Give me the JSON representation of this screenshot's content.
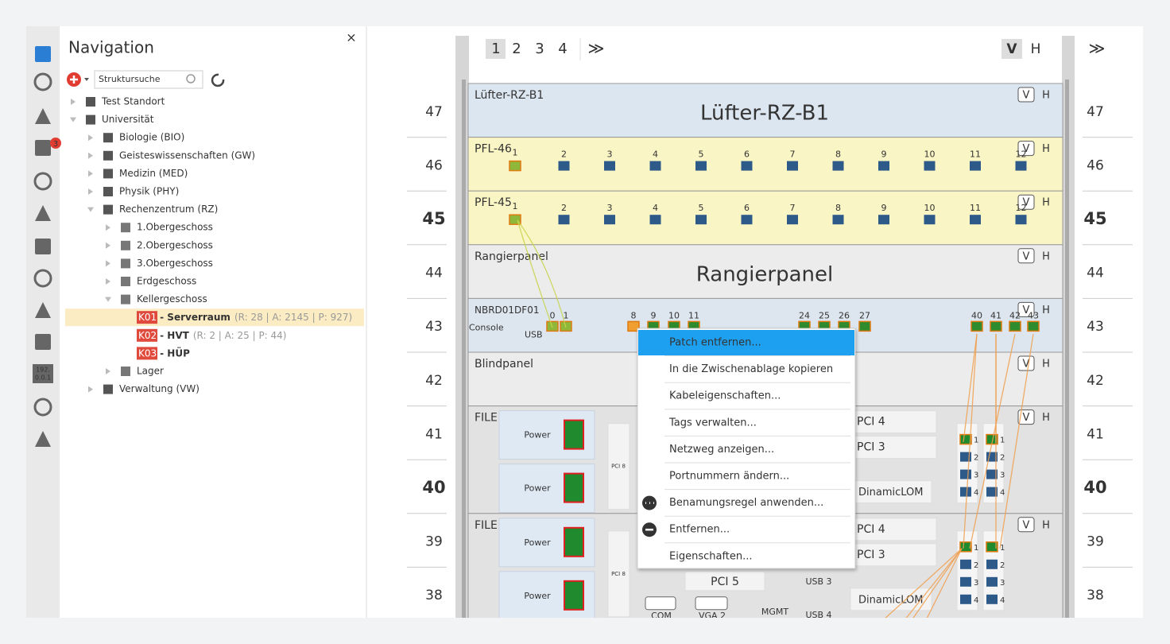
{
  "navigation": {
    "title": "Navigation",
    "close": "×",
    "search_placeholder": "Struktursuche",
    "badge": "3",
    "ip_icon": [
      "192.",
      "0.0.1"
    ],
    "tree": [
      {
        "label": "Test Standort"
      },
      {
        "label": "Universität",
        "children": [
          {
            "label": "Biologie (BIO)"
          },
          {
            "label": "Geisteswissenschaften (GW)"
          },
          {
            "label": "Medizin (MED)"
          },
          {
            "label": "Physik (PHY)"
          },
          {
            "label": "Rechenzentrum (RZ)",
            "children": [
              {
                "label": "1.Obergeschoss"
              },
              {
                "label": "2.Obergeschoss"
              },
              {
                "label": "3.Obergeschoss"
              },
              {
                "label": "Erdgeschoss"
              },
              {
                "label": "Kellergeschoss",
                "children": [
                  {
                    "code": "K01",
                    "label": "- Serverraum",
                    "details": "(R: 28 | A: 2145 | P: 927)",
                    "selected": true
                  },
                  {
                    "code": "K02",
                    "label": "- HVT",
                    "details": "(R: 2 | A: 25 | P: 44)"
                  },
                  {
                    "code": "K03",
                    "label": "- HÜP"
                  }
                ]
              },
              {
                "label": "Lager"
              }
            ]
          },
          {
            "label": "Verwaltung (VW)"
          }
        ]
      }
    ]
  },
  "rack": {
    "pages": [
      "1",
      "2",
      "3",
      "4"
    ],
    "next": "≫",
    "view": [
      "V",
      "H"
    ],
    "side_next": "≫",
    "units": [
      47,
      46,
      45,
      44,
      43,
      42,
      41,
      40,
      39,
      38
    ],
    "devices": [
      {
        "label": "Lüfter-RZ-B1",
        "name": "Lüfter-RZ-B1"
      },
      {
        "label": "PFL-46",
        "ports": [
          1,
          2,
          3,
          4,
          5,
          6,
          7,
          8,
          9,
          10,
          11,
          12
        ]
      },
      {
        "label": "PFL-45",
        "ports": [
          1,
          2,
          3,
          4,
          5,
          6,
          7,
          8,
          9,
          10,
          11,
          12
        ]
      },
      {
        "label": "Rangierpanel",
        "name": "Rangierpanel"
      },
      {
        "label": "NBRD01DF01",
        "console": "Console",
        "usb": "USB",
        "ports": [
          0,
          1,
          8,
          9,
          10,
          11,
          24,
          25,
          26,
          27,
          40,
          41,
          42,
          43
        ]
      },
      {
        "label": "Blindpanel"
      },
      {
        "label": "FILE",
        "power": [
          "Power",
          "Power"
        ],
        "pci": [
          "PCI 8",
          "PCI 4",
          "PCI 3"
        ],
        "lom": "DinamicLOM",
        "lom_ports": [
          1,
          2,
          3,
          4
        ]
      },
      {
        "label": "FILE",
        "power": [
          "Power",
          "Power"
        ],
        "pci": [
          "PCI 8",
          "PCI 4",
          "PCI 3",
          "PCI 5"
        ],
        "lom": "DinamicLOM",
        "lom_ports": [
          1,
          2,
          3,
          4
        ],
        "io": [
          "USB 3",
          "USB 4",
          "COM",
          "VGA 2",
          "MGMT"
        ]
      }
    ]
  },
  "context_menu": [
    "Patch entfernen...",
    "In die Zwischenablage kopieren",
    "Kabeleigenschaften...",
    "Tags verwalten...",
    "Netzweg anzeigen...",
    "Portnummern ändern...",
    "Benamungsregel anwenden...",
    "Entfernen...",
    "Eigenschaften..."
  ]
}
